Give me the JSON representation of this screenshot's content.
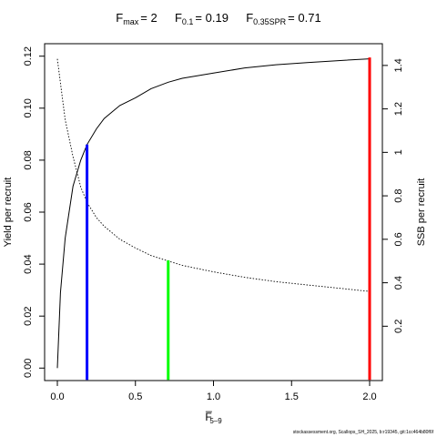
{
  "title": {
    "fmax": {
      "symbol": "F",
      "subscript": "max",
      "equals": "= 2"
    },
    "f01": {
      "symbol": "F",
      "subscript": "0.1",
      "equals": "= 0.19"
    },
    "fspr": {
      "symbol": "F",
      "subscript": "0.35SPR",
      "equals": "= 0.71"
    }
  },
  "footer": "stockassessment.org, Scallops_SH_2025, b:r19345, git:1cc464b80f6f",
  "chart_data": {
    "type": "line",
    "xlabel": "F̅",
    "xlabel_sub": "5–9",
    "ylabel": "Yield per recruit",
    "y2label": "SSB per recruit",
    "xlim": [
      0,
      2
    ],
    "ylim": [
      -0.0048,
      0.1248
    ],
    "y2lim": [
      -0.05,
      1.5
    ],
    "xticks": [
      0,
      0.5,
      1,
      1.5,
      2
    ],
    "xtick_labels": [
      "0.0",
      "0.5",
      "1.0",
      "1.5",
      "2.0"
    ],
    "yticks": [
      0,
      0.02,
      0.04,
      0.06,
      0.08,
      0.1,
      0.12
    ],
    "ytick_labels": [
      "0.00",
      "0.02",
      "0.04",
      "0.06",
      "0.08",
      "0.10",
      "0.12"
    ],
    "y2ticks": [
      0.2,
      0.4,
      0.6,
      0.8,
      1.0,
      1.2,
      1.4
    ],
    "y2tick_labels": [
      "0.2",
      "0.4",
      "0.6",
      "0.8",
      "1",
      "1.2",
      "1.4"
    ],
    "series": [
      {
        "style": "solid",
        "axis": "left",
        "x": [
          0,
          0.02,
          0.05,
          0.1,
          0.15,
          0.19,
          0.25,
          0.3,
          0.4,
          0.5,
          0.6,
          0.71,
          0.8,
          1.0,
          1.2,
          1.4,
          1.6,
          1.8,
          2.0
        ],
        "y": [
          0,
          0.029,
          0.05,
          0.07,
          0.08,
          0.086,
          0.092,
          0.096,
          0.101,
          0.104,
          0.1075,
          0.11,
          0.1115,
          0.1135,
          0.1155,
          0.1167,
          0.1175,
          0.1183,
          0.119
        ]
      },
      {
        "style": "dotted",
        "axis": "right",
        "x": [
          0,
          0.05,
          0.1,
          0.15,
          0.19,
          0.25,
          0.3,
          0.4,
          0.5,
          0.6,
          0.71,
          0.8,
          1.0,
          1.2,
          1.4,
          1.6,
          1.8,
          2.0
        ],
        "y": [
          1.43,
          1.15,
          0.98,
          0.84,
          0.77,
          0.7,
          0.66,
          0.6,
          0.56,
          0.525,
          0.5,
          0.48,
          0.45,
          0.425,
          0.405,
          0.39,
          0.375,
          0.36
        ]
      }
    ],
    "reference_lines": [
      {
        "x": 0.19,
        "y": 0.086,
        "color": "#0000ff"
      },
      {
        "x": 0.71,
        "y": 0.0415,
        "color": "#00ff00"
      },
      {
        "x": 2.0,
        "y": 0.1195,
        "color": "#ff0000"
      }
    ]
  }
}
